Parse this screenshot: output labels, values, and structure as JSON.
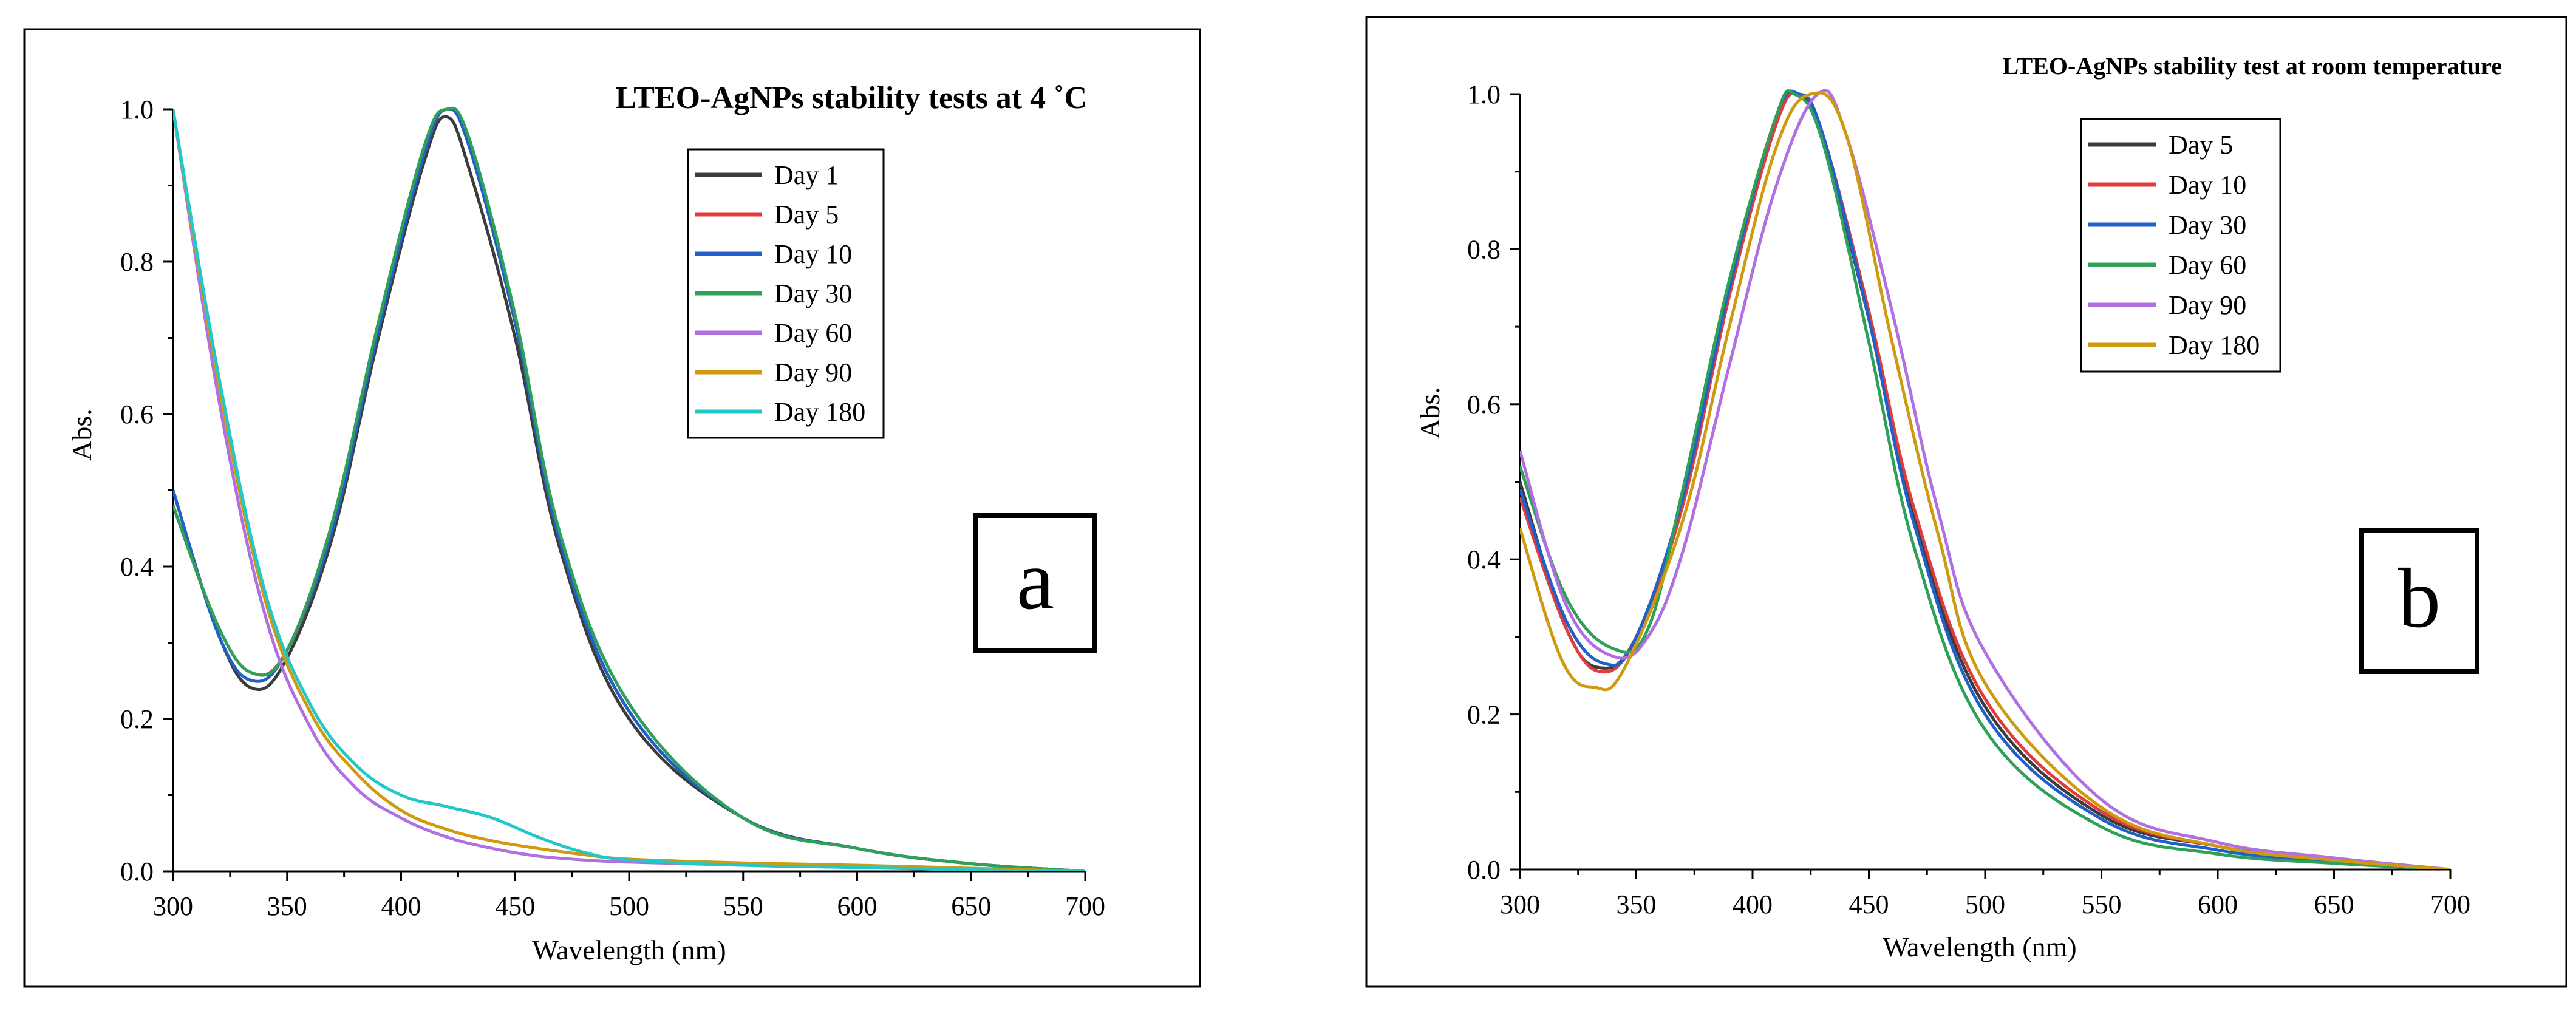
{
  "chart_data": [
    {
      "id": "a",
      "type": "line",
      "title": "LTEO-AgNPs stability tests at 4 ˚C",
      "xlabel": "Wavelength (nm)",
      "ylabel": "Abs.",
      "xlim": [
        300,
        700
      ],
      "ylim": [
        0,
        1.0
      ],
      "xticks": [
        300,
        350,
        400,
        450,
        500,
        550,
        600,
        650,
        700
      ],
      "yticks": [
        0.0,
        0.2,
        0.4,
        0.6,
        0.8,
        1.0
      ],
      "panel_label": "a",
      "legend_position": "top-right",
      "series": [
        {
          "name": "Day 1",
          "color": "#3c3c3c",
          "x": [
            300,
            320,
            335,
            350,
            370,
            390,
            410,
            420,
            430,
            450,
            470,
            500,
            550,
            600,
            650,
            700
          ],
          "y": [
            0.5,
            0.31,
            0.24,
            0.28,
            0.44,
            0.7,
            0.93,
            0.99,
            0.92,
            0.7,
            0.42,
            0.2,
            0.07,
            0.03,
            0.01,
            0.0
          ]
        },
        {
          "name": "Day 5",
          "color": "#e03c3c",
          "x": [
            300,
            320,
            335,
            350,
            370,
            390,
            410,
            420,
            430,
            450,
            470,
            500,
            550,
            600,
            650,
            700
          ],
          "y": [
            0.48,
            0.32,
            0.26,
            0.29,
            0.45,
            0.71,
            0.94,
            1.0,
            0.95,
            0.72,
            0.43,
            0.21,
            0.07,
            0.03,
            0.01,
            0.0
          ]
        },
        {
          "name": "Day 10",
          "color": "#2060c8",
          "x": [
            300,
            320,
            335,
            350,
            370,
            390,
            410,
            420,
            430,
            450,
            470,
            500,
            550,
            600,
            650,
            700
          ],
          "y": [
            0.5,
            0.31,
            0.25,
            0.29,
            0.45,
            0.71,
            0.94,
            1.0,
            0.95,
            0.72,
            0.43,
            0.21,
            0.07,
            0.03,
            0.01,
            0.0
          ]
        },
        {
          "name": "Day 30",
          "color": "#2ea05a",
          "x": [
            300,
            320,
            335,
            350,
            370,
            390,
            410,
            420,
            430,
            450,
            470,
            500,
            550,
            600,
            650,
            700
          ],
          "y": [
            0.48,
            0.32,
            0.26,
            0.29,
            0.46,
            0.72,
            0.95,
            1.0,
            0.96,
            0.73,
            0.44,
            0.22,
            0.07,
            0.03,
            0.01,
            0.0
          ]
        },
        {
          "name": "Day 60",
          "color": "#b070e0",
          "x": [
            300,
            320,
            340,
            360,
            380,
            400,
            420,
            440,
            460,
            480,
            500,
            550,
            600,
            650,
            700
          ],
          "y": [
            1.0,
            0.62,
            0.34,
            0.19,
            0.11,
            0.07,
            0.045,
            0.03,
            0.02,
            0.015,
            0.012,
            0.008,
            0.005,
            0.002,
            0.0
          ]
        },
        {
          "name": "Day 90",
          "color": "#d09a10",
          "x": [
            300,
            320,
            340,
            360,
            380,
            400,
            420,
            440,
            460,
            480,
            500,
            550,
            600,
            650,
            700
          ],
          "y": [
            1.0,
            0.64,
            0.36,
            0.21,
            0.13,
            0.08,
            0.055,
            0.04,
            0.03,
            0.022,
            0.016,
            0.011,
            0.008,
            0.004,
            0.0
          ]
        },
        {
          "name": "Day 180",
          "color": "#22c8c8",
          "x": [
            300,
            320,
            340,
            360,
            380,
            400,
            420,
            440,
            460,
            480,
            500,
            550,
            600,
            650,
            700
          ],
          "y": [
            1.0,
            0.65,
            0.37,
            0.22,
            0.14,
            0.1,
            0.085,
            0.07,
            0.045,
            0.025,
            0.015,
            0.008,
            0.005,
            0.002,
            0.0
          ]
        }
      ]
    },
    {
      "id": "b",
      "type": "line",
      "title": "LTEO-AgNPs stability test at room temperature",
      "xlabel": "Wavelength (nm)",
      "ylabel": "Abs.",
      "xlim": [
        300,
        700
      ],
      "ylim": [
        0,
        1.0
      ],
      "xticks": [
        300,
        350,
        400,
        450,
        500,
        550,
        600,
        650,
        700
      ],
      "yticks": [
        0.0,
        0.2,
        0.4,
        0.6,
        0.8,
        1.0
      ],
      "panel_label": "b",
      "legend_position": "top-center",
      "series": [
        {
          "name": "Day 5",
          "color": "#3c3c3c",
          "x": [
            300,
            320,
            335,
            350,
            370,
            390,
            410,
            420,
            430,
            450,
            470,
            500,
            550,
            600,
            650,
            700
          ],
          "y": [
            0.5,
            0.31,
            0.26,
            0.3,
            0.47,
            0.74,
            0.96,
            1.0,
            0.94,
            0.71,
            0.45,
            0.21,
            0.07,
            0.03,
            0.01,
            0.0
          ]
        },
        {
          "name": "Day 10",
          "color": "#e03c3c",
          "x": [
            300,
            320,
            335,
            350,
            370,
            390,
            410,
            420,
            430,
            450,
            470,
            500,
            550,
            600,
            650,
            700
          ],
          "y": [
            0.48,
            0.31,
            0.255,
            0.3,
            0.47,
            0.74,
            0.96,
            1.0,
            0.95,
            0.72,
            0.46,
            0.22,
            0.075,
            0.03,
            0.01,
            0.0
          ]
        },
        {
          "name": "Day 30",
          "color": "#2060c8",
          "x": [
            300,
            320,
            337,
            350,
            370,
            390,
            410,
            420,
            430,
            450,
            470,
            500,
            550,
            600,
            650,
            700
          ],
          "y": [
            0.49,
            0.32,
            0.265,
            0.3,
            0.48,
            0.75,
            0.97,
            1.0,
            0.95,
            0.71,
            0.44,
            0.2,
            0.065,
            0.025,
            0.01,
            0.0
          ]
        },
        {
          "name": "Day 60",
          "color": "#2ea05a",
          "x": [
            300,
            320,
            340,
            355,
            370,
            390,
            410,
            418,
            430,
            450,
            470,
            500,
            550,
            600,
            650,
            700
          ],
          "y": [
            0.52,
            0.35,
            0.285,
            0.31,
            0.49,
            0.76,
            0.97,
            1.0,
            0.94,
            0.68,
            0.41,
            0.18,
            0.055,
            0.02,
            0.008,
            0.0
          ]
        },
        {
          "name": "Day 90",
          "color": "#b070e0",
          "x": [
            300,
            320,
            340,
            355,
            370,
            390,
            410,
            428,
            440,
            460,
            480,
            500,
            550,
            600,
            650,
            700
          ],
          "y": [
            0.54,
            0.34,
            0.275,
            0.3,
            0.41,
            0.65,
            0.88,
            1.0,
            0.95,
            0.72,
            0.46,
            0.28,
            0.09,
            0.035,
            0.015,
            0.0
          ]
        },
        {
          "name": "Day 180",
          "color": "#d09a10",
          "x": [
            300,
            318,
            332,
            345,
            370,
            390,
            410,
            425,
            440,
            460,
            480,
            500,
            550,
            600,
            650,
            700
          ],
          "y": [
            0.44,
            0.27,
            0.235,
            0.26,
            0.45,
            0.7,
            0.93,
            1.0,
            0.95,
            0.68,
            0.43,
            0.24,
            0.08,
            0.03,
            0.012,
            0.0
          ]
        }
      ]
    }
  ]
}
